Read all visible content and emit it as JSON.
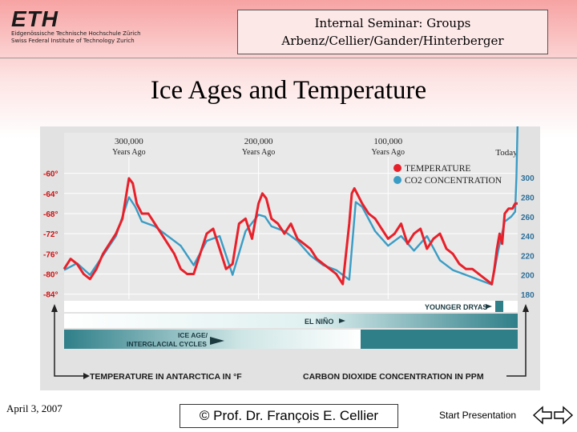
{
  "logo": {
    "mark": "ETH",
    "line1": "Eidgenössische Technische Hochschule Zürich",
    "line2": "Swiss Federal Institute of Technology Zurich"
  },
  "seminar": {
    "line1": "Internal Seminar: Groups",
    "line2": "Arbenz/Cellier/Gander/Hinterberger"
  },
  "slide_title": "Ice Ages and Temperature",
  "footer": {
    "date": "April 3, 2007",
    "copyright": "© Prof. Dr. François E. Cellier",
    "start_link": "Start Presentation"
  },
  "colors": {
    "temperature": "#e8202a",
    "co2": "#3a9cc4",
    "axis_label": "#d01010",
    "bar_dark": "#2f7f89"
  },
  "chart_data": {
    "type": "line",
    "time_markers": [
      {
        "label": "300,000",
        "sub": "Years Ago",
        "years_ago": 300000
      },
      {
        "label": "200,000",
        "sub": "Years Ago",
        "years_ago": 200000
      },
      {
        "label": "100,000",
        "sub": "Years Ago",
        "years_ago": 100000
      },
      {
        "label": "Today",
        "sub": "",
        "years_ago": 0
      }
    ],
    "x_range_years_ago": [
      350000,
      0
    ],
    "left_axis": {
      "ticks": [
        -60,
        -64,
        -68,
        -72,
        -76,
        -80,
        -84
      ],
      "tick_labels": [
        "-60°",
        "-64°",
        "-68°",
        "-72°",
        "-76°",
        "-80°",
        "-84°"
      ],
      "range": [
        -85,
        -58
      ]
    },
    "right_axis": {
      "ticks": [
        300,
        280,
        260,
        240,
        220,
        200,
        180
      ],
      "tick_labels": [
        "300",
        "280",
        "260",
        "240",
        "220",
        "200",
        "180"
      ],
      "range": [
        175,
        315
      ]
    },
    "legend": [
      {
        "name": "TEMPERATURE",
        "color": "#e8202a"
      },
      {
        "name": "CO2 CONCENTRATION",
        "color": "#3a9cc4"
      }
    ],
    "legend_position": "top-right",
    "series": [
      {
        "name": "TEMPERATURE",
        "axis": "left",
        "x": [
          350000,
          345000,
          340000,
          335000,
          330000,
          325000,
          320000,
          315000,
          310000,
          305000,
          300000,
          297000,
          294000,
          290000,
          285000,
          280000,
          275000,
          270000,
          265000,
          260000,
          255000,
          250000,
          245000,
          240000,
          235000,
          230000,
          225000,
          220000,
          215000,
          210000,
          205000,
          200000,
          197000,
          194000,
          190000,
          185000,
          180000,
          175000,
          170000,
          165000,
          160000,
          155000,
          150000,
          145000,
          140000,
          135000,
          130000,
          128000,
          126000,
          124000,
          120000,
          115000,
          110000,
          105000,
          100000,
          95000,
          90000,
          85000,
          80000,
          75000,
          70000,
          65000,
          60000,
          55000,
          50000,
          45000,
          40000,
          35000,
          30000,
          25000,
          20000,
          18000,
          16000,
          14000,
          12000,
          10000,
          7000,
          4000,
          2000,
          0
        ],
        "values": [
          -79,
          -77,
          -78,
          -80,
          -81,
          -79,
          -76,
          -74,
          -72,
          -69,
          -61,
          -62,
          -66,
          -68,
          -68,
          -70,
          -72,
          -74,
          -76,
          -79,
          -80,
          -80,
          -76,
          -72,
          -71,
          -75,
          -79,
          -78,
          -70,
          -69,
          -73,
          -66,
          -64,
          -65,
          -69,
          -70,
          -72,
          -70,
          -73,
          -74,
          -75,
          -77,
          -78,
          -79,
          -80,
          -82,
          -70,
          -64,
          -63,
          -64,
          -66,
          -68,
          -69,
          -71,
          -73,
          -72,
          -70,
          -74,
          -72,
          -71,
          -75,
          -73,
          -72,
          -75,
          -76,
          -78,
          -79,
          -79,
          -80,
          -81,
          -82,
          -79,
          -75,
          -72,
          -74,
          -68,
          -67,
          -67,
          -66,
          -66
        ]
      },
      {
        "name": "CO2 CONCENTRATION",
        "axis": "right",
        "x": [
          350000,
          340000,
          330000,
          320000,
          310000,
          300000,
          295000,
          290000,
          280000,
          270000,
          260000,
          250000,
          240000,
          230000,
          220000,
          210000,
          200000,
          195000,
          190000,
          180000,
          170000,
          160000,
          150000,
          140000,
          130000,
          125000,
          120000,
          110000,
          100000,
          90000,
          80000,
          70000,
          60000,
          50000,
          40000,
          30000,
          20000,
          15000,
          10000,
          5000,
          2000,
          1000,
          0
        ],
        "values": [
          205,
          212,
          200,
          220,
          240,
          280,
          270,
          255,
          250,
          240,
          230,
          210,
          235,
          240,
          200,
          245,
          262,
          260,
          250,
          245,
          235,
          220,
          210,
          205,
          195,
          275,
          270,
          245,
          230,
          240,
          225,
          240,
          215,
          205,
          200,
          195,
          190,
          225,
          255,
          260,
          265,
          300,
          360
        ]
      }
    ],
    "bars": [
      {
        "label": "YOUNGER DRYAS"
      },
      {
        "label": "EL NIÑO"
      },
      {
        "label": "ICE AGE/",
        "label2": "INTERGLACIAL CYCLES"
      }
    ],
    "bottom_labels": {
      "left": "TEMPERATURE IN ANTARCTICA IN °F",
      "right": "CARBON DIOXIDE CONCENTRATION IN PPM"
    }
  }
}
